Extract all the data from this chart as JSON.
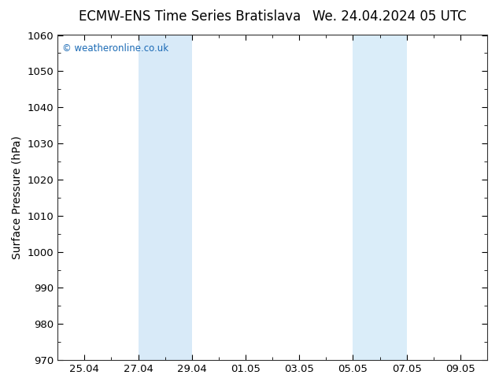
{
  "title_left": "ECMW-ENS Time Series Bratislava",
  "title_right": "We. 24.04.2024 05 UTC",
  "ylabel": "Surface Pressure (hPa)",
  "ylim": [
    970,
    1060
  ],
  "ytick_step": 10,
  "xtick_labels": [
    "25.04",
    "27.04",
    "29.04",
    "01.05",
    "03.05",
    "05.05",
    "07.05",
    "09.05"
  ],
  "watermark": "© weatheronline.co.uk",
  "watermark_color": "#1a6ab5",
  "bg_color": "#ffffff",
  "plot_bg_color": "#ffffff",
  "shaded_band1_color": "#d8eaf8",
  "shaded_band2_color": "#daedf9",
  "title_fontsize": 12,
  "label_fontsize": 10,
  "tick_fontsize": 9.5
}
